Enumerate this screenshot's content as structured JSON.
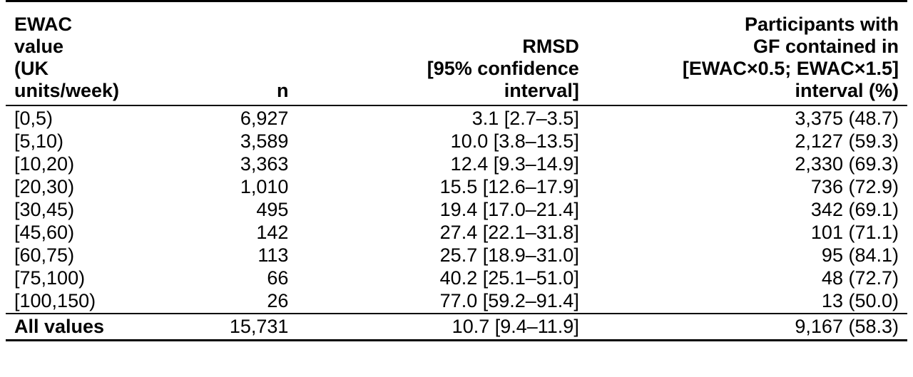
{
  "table": {
    "headers": {
      "col1": [
        "EWAC value",
        "(UK units/week)"
      ],
      "col2": [
        "n"
      ],
      "col3": [
        "RMSD",
        "[95% confidence",
        "interval]"
      ],
      "col4": [
        "Participants with",
        "GF contained in",
        "[EWAC×0.5; EWAC×1.5]",
        "interval (%)"
      ]
    },
    "rows": [
      {
        "range": "[0,5)",
        "n": "6,927",
        "rmsd": "3.1 [2.7–3.5]",
        "participants": "3,375 (48.7)"
      },
      {
        "range": "[5,10)",
        "n": "3,589",
        "rmsd": "10.0 [3.8–13.5]",
        "participants": "2,127 (59.3)"
      },
      {
        "range": "[10,20)",
        "n": "3,363",
        "rmsd": "12.4 [9.3–14.9]",
        "participants": "2,330 (69.3)"
      },
      {
        "range": "[20,30)",
        "n": "1,010",
        "rmsd": "15.5 [12.6–17.9]",
        "participants": "736 (72.9)"
      },
      {
        "range": "[30,45)",
        "n": "495",
        "rmsd": "19.4 [17.0–21.4]",
        "participants": "342 (69.1)"
      },
      {
        "range": "[45,60)",
        "n": "142",
        "rmsd": "27.4 [22.1–31.8]",
        "participants": "101 (71.1)"
      },
      {
        "range": "[60,75)",
        "n": "113",
        "rmsd": "25.7 [18.9–31.0]",
        "participants": "95 (84.1)"
      },
      {
        "range": "[75,100)",
        "n": "66",
        "rmsd": "40.2 [25.1–51.0]",
        "participants": "48 (72.7)"
      },
      {
        "range": "[100,150)",
        "n": "26",
        "rmsd": "77.0 [59.2–91.4]",
        "participants": "13 (50.0)"
      }
    ],
    "total": {
      "range": "All values",
      "n": "15,731",
      "rmsd": "10.7 [9.4–11.9]",
      "participants": "9,167 (58.3)"
    }
  }
}
